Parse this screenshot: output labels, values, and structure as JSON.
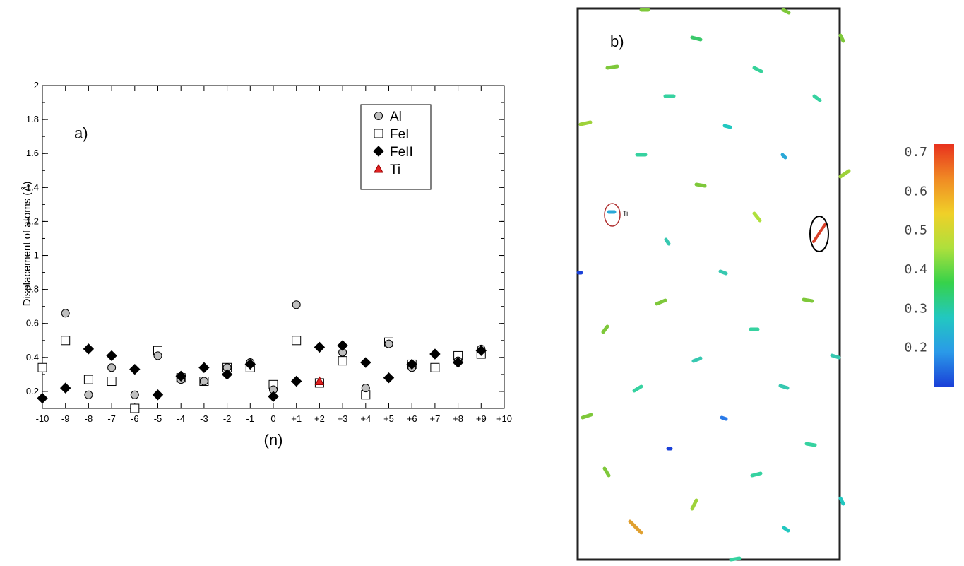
{
  "figure": {
    "panel_a_label": "a)",
    "panel_b_label": "b)"
  },
  "chart_data": [
    {
      "type": "scatter",
      "title": "",
      "xlabel": "(n)",
      "ylabel": "Displacement of atoms (Å)",
      "xlim": [
        -10,
        10
      ],
      "ylim": [
        0.1,
        2
      ],
      "x_ticks": [
        "-10",
        "-9",
        "-8",
        "-7",
        "-6",
        "-5",
        "-4",
        "-3",
        "-2",
        "-1",
        "0",
        "+1",
        "+2",
        "+3",
        "+4",
        "+5",
        "+6",
        "+7",
        "+8",
        "+9",
        "+10"
      ],
      "y_ticks": [
        "0.2",
        "0.4",
        "0.6",
        "0.8",
        "1",
        "1.2",
        "1.4",
        "1.6",
        "1.8",
        "2"
      ],
      "legend_position": "top-right",
      "series": [
        {
          "name": "Al",
          "marker": "circle",
          "color": "#bfbfbf",
          "x": [
            -9,
            -8,
            -7,
            -6,
            -5,
            -4,
            -3,
            -2,
            -1,
            0,
            1,
            3,
            4,
            5,
            6,
            8,
            9
          ],
          "y": [
            0.66,
            0.18,
            0.34,
            0.18,
            0.41,
            0.27,
            0.26,
            0.34,
            0.37,
            0.21,
            0.71,
            0.43,
            0.22,
            0.48,
            0.34,
            0.38,
            0.45
          ]
        },
        {
          "name": "FeI",
          "marker": "square",
          "color": "#ffffff",
          "x": [
            -10,
            -9,
            -8,
            -7,
            -6,
            -5,
            -4,
            -3,
            -2,
            -1,
            0,
            1,
            2,
            3,
            4,
            5,
            6,
            7,
            8,
            9
          ],
          "y": [
            0.34,
            0.5,
            0.27,
            0.26,
            0.1,
            0.44,
            0.28,
            0.26,
            0.34,
            0.34,
            0.24,
            0.5,
            0.25,
            0.38,
            0.18,
            0.49,
            0.36,
            0.34,
            0.41,
            0.42
          ]
        },
        {
          "name": "FeII",
          "marker": "diamond",
          "color": "#000000",
          "x": [
            -10,
            -9,
            -8,
            -7,
            -6,
            -5,
            -4,
            -3,
            -2,
            -1,
            0,
            1,
            2,
            3,
            4,
            5,
            6,
            7,
            8,
            9
          ],
          "y": [
            0.16,
            0.22,
            0.45,
            0.41,
            0.33,
            0.18,
            0.29,
            0.34,
            0.3,
            0.36,
            0.17,
            0.26,
            0.46,
            0.47,
            0.37,
            0.28,
            0.36,
            0.42,
            0.37,
            0.44
          ]
        },
        {
          "name": "Ti",
          "marker": "triangle",
          "color": "#e02020",
          "x": [
            2
          ],
          "y": [
            0.26
          ]
        }
      ]
    },
    {
      "type": "heatmap",
      "title": "",
      "annotation": "Ti",
      "colorbar_ticks": [
        "0.7",
        "0.6",
        "0.5",
        "0.4",
        "0.3",
        "0.2"
      ],
      "colorbar_range": [
        0.1,
        0.72
      ],
      "colorbar_colors": [
        "#e8321e",
        "#f08a24",
        "#f0d028",
        "#aee03c",
        "#36d24a",
        "#22c8c0",
        "#2a9ae8",
        "#1a40d8"
      ]
    }
  ]
}
